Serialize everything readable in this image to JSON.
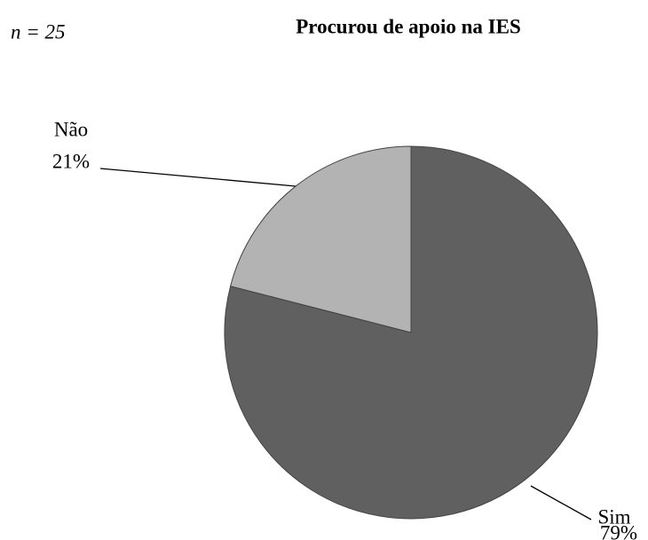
{
  "chart_data": {
    "type": "pie",
    "title": "Procurou de apoio na IES",
    "annotation": "n = 25",
    "categories": [
      "Sim",
      "Não"
    ],
    "values": [
      79,
      21
    ],
    "value_labels": [
      "79%",
      "21%"
    ],
    "colors": [
      "#606060",
      "#b3b3b3"
    ]
  }
}
